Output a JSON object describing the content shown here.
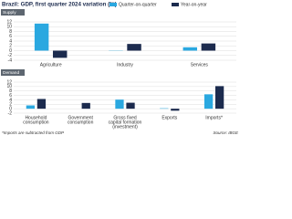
{
  "title": "Brazil: GDP, first quarter 2024 variation (%)",
  "note": "*Imports are subtracted from GDP",
  "source": "Source: IBGE",
  "chart_data": [
    {
      "type": "bar",
      "panel": "Supply",
      "categories": [
        "Agriculture",
        "Industry",
        "Services"
      ],
      "series": [
        {
          "name": "Quarter-on-quarter",
          "color": "#2aa8e0",
          "values": [
            11.3,
            -0.1,
            1.4
          ]
        },
        {
          "name": "Year-on-year",
          "color": "#1c2b4e",
          "values": [
            -3.0,
            2.8,
            3.0
          ]
        }
      ],
      "ylim": [
        -4,
        12
      ],
      "yticks": [
        -4,
        -2,
        0,
        2,
        4,
        6,
        8,
        10,
        12
      ],
      "grid": true
    },
    {
      "type": "bar",
      "panel": "Demand",
      "categories": [
        [
          "Household",
          "consumption"
        ],
        [
          "Government",
          "consumption"
        ],
        [
          "Gross fixed",
          "capital formation",
          "(investment)"
        ],
        [
          "Exports"
        ],
        [
          "Imports*"
        ]
      ],
      "series": [
        {
          "name": "Quarter-on-quarter",
          "color": "#2aa8e0",
          "values": [
            1.5,
            0.0,
            4.1,
            0.2,
            6.5
          ]
        },
        {
          "name": "Year-on-year",
          "color": "#1c2b4e",
          "values": [
            4.4,
            2.6,
            2.7,
            -0.9,
            10.2
          ]
        }
      ],
      "ylim": [
        -2,
        12
      ],
      "yticks": [
        -2,
        0,
        2,
        4,
        6,
        8,
        10,
        12
      ],
      "grid": true
    }
  ]
}
